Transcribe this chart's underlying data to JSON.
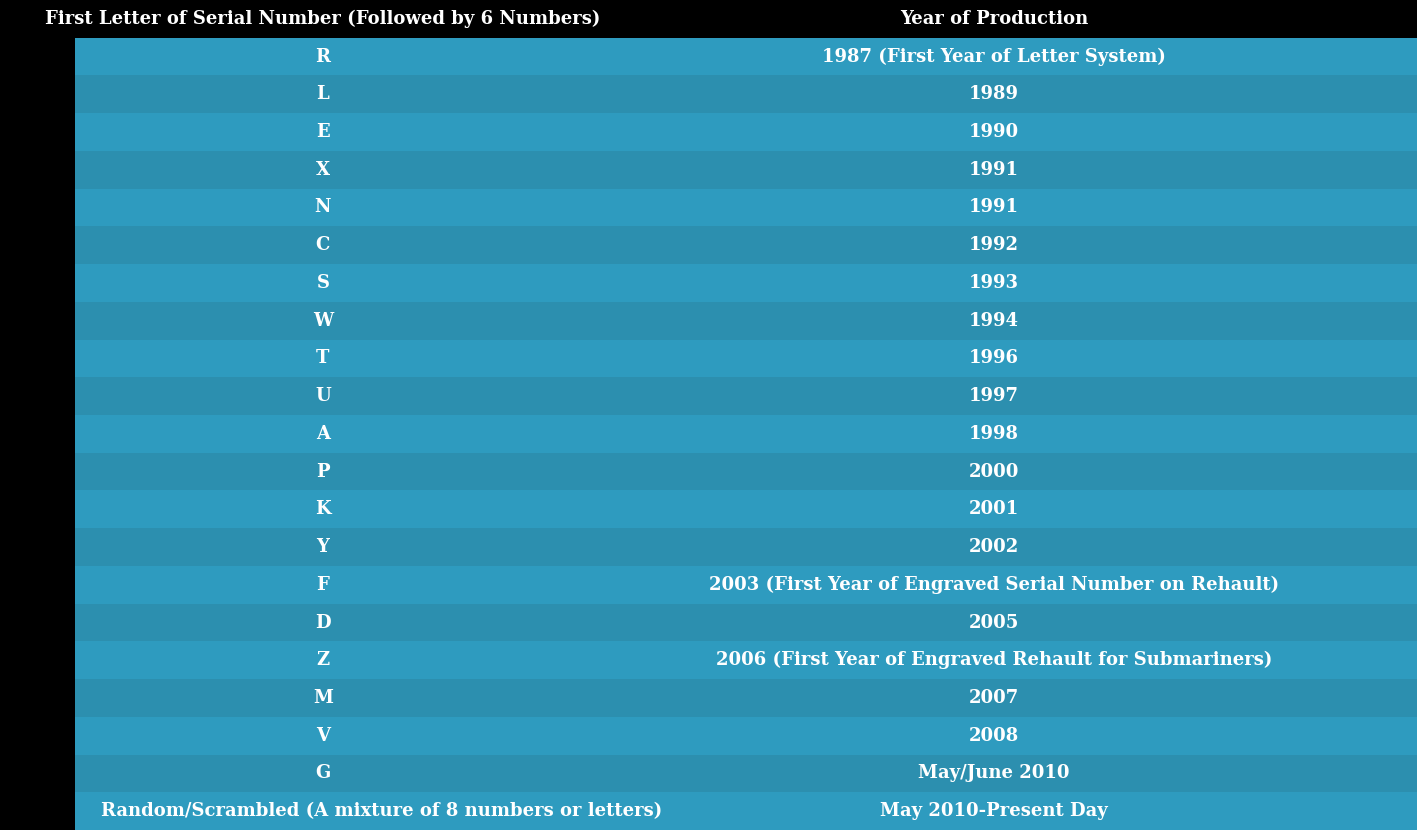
{
  "header": [
    "First Letter of Serial Number (Followed by 6 Numbers)",
    "Year of Production"
  ],
  "rows": [
    [
      "R",
      "1987 (First Year of Letter System)"
    ],
    [
      "L",
      "1989"
    ],
    [
      "E",
      "1990"
    ],
    [
      "X",
      "1991"
    ],
    [
      "N",
      "1991"
    ],
    [
      "C",
      "1992"
    ],
    [
      "S",
      "1993"
    ],
    [
      "W",
      "1994"
    ],
    [
      "T",
      "1996"
    ],
    [
      "U",
      "1997"
    ],
    [
      "A",
      "1998"
    ],
    [
      "P",
      "2000"
    ],
    [
      "K",
      "2001"
    ],
    [
      "Y",
      "2002"
    ],
    [
      "F",
      "2003 (First Year of Engraved Serial Number on Rehault)"
    ],
    [
      "D",
      "2005"
    ],
    [
      "Z",
      "2006 (First Year of Engraved Rehault for Submariners)"
    ],
    [
      "M",
      "2007"
    ],
    [
      "V",
      "2008"
    ],
    [
      "G",
      "May/June 2010"
    ],
    [
      "Random/Scrambled (A mixture of 8 numbers or letters)",
      "May 2010-Present Day"
    ]
  ],
  "header_bg": "#000000",
  "header_text_color": "#ffffff",
  "row_colors": [
    "#2E9BBF",
    "#2C8FAF"
  ],
  "row_text_color": "#ffffff",
  "col1_align": "center",
  "col2_align": "center",
  "last_row_col1_align": "left",
  "last_row_col2_align": "center",
  "fig_width": 14.17,
  "fig_height": 8.3,
  "font_size": 13,
  "header_font_size": 13
}
